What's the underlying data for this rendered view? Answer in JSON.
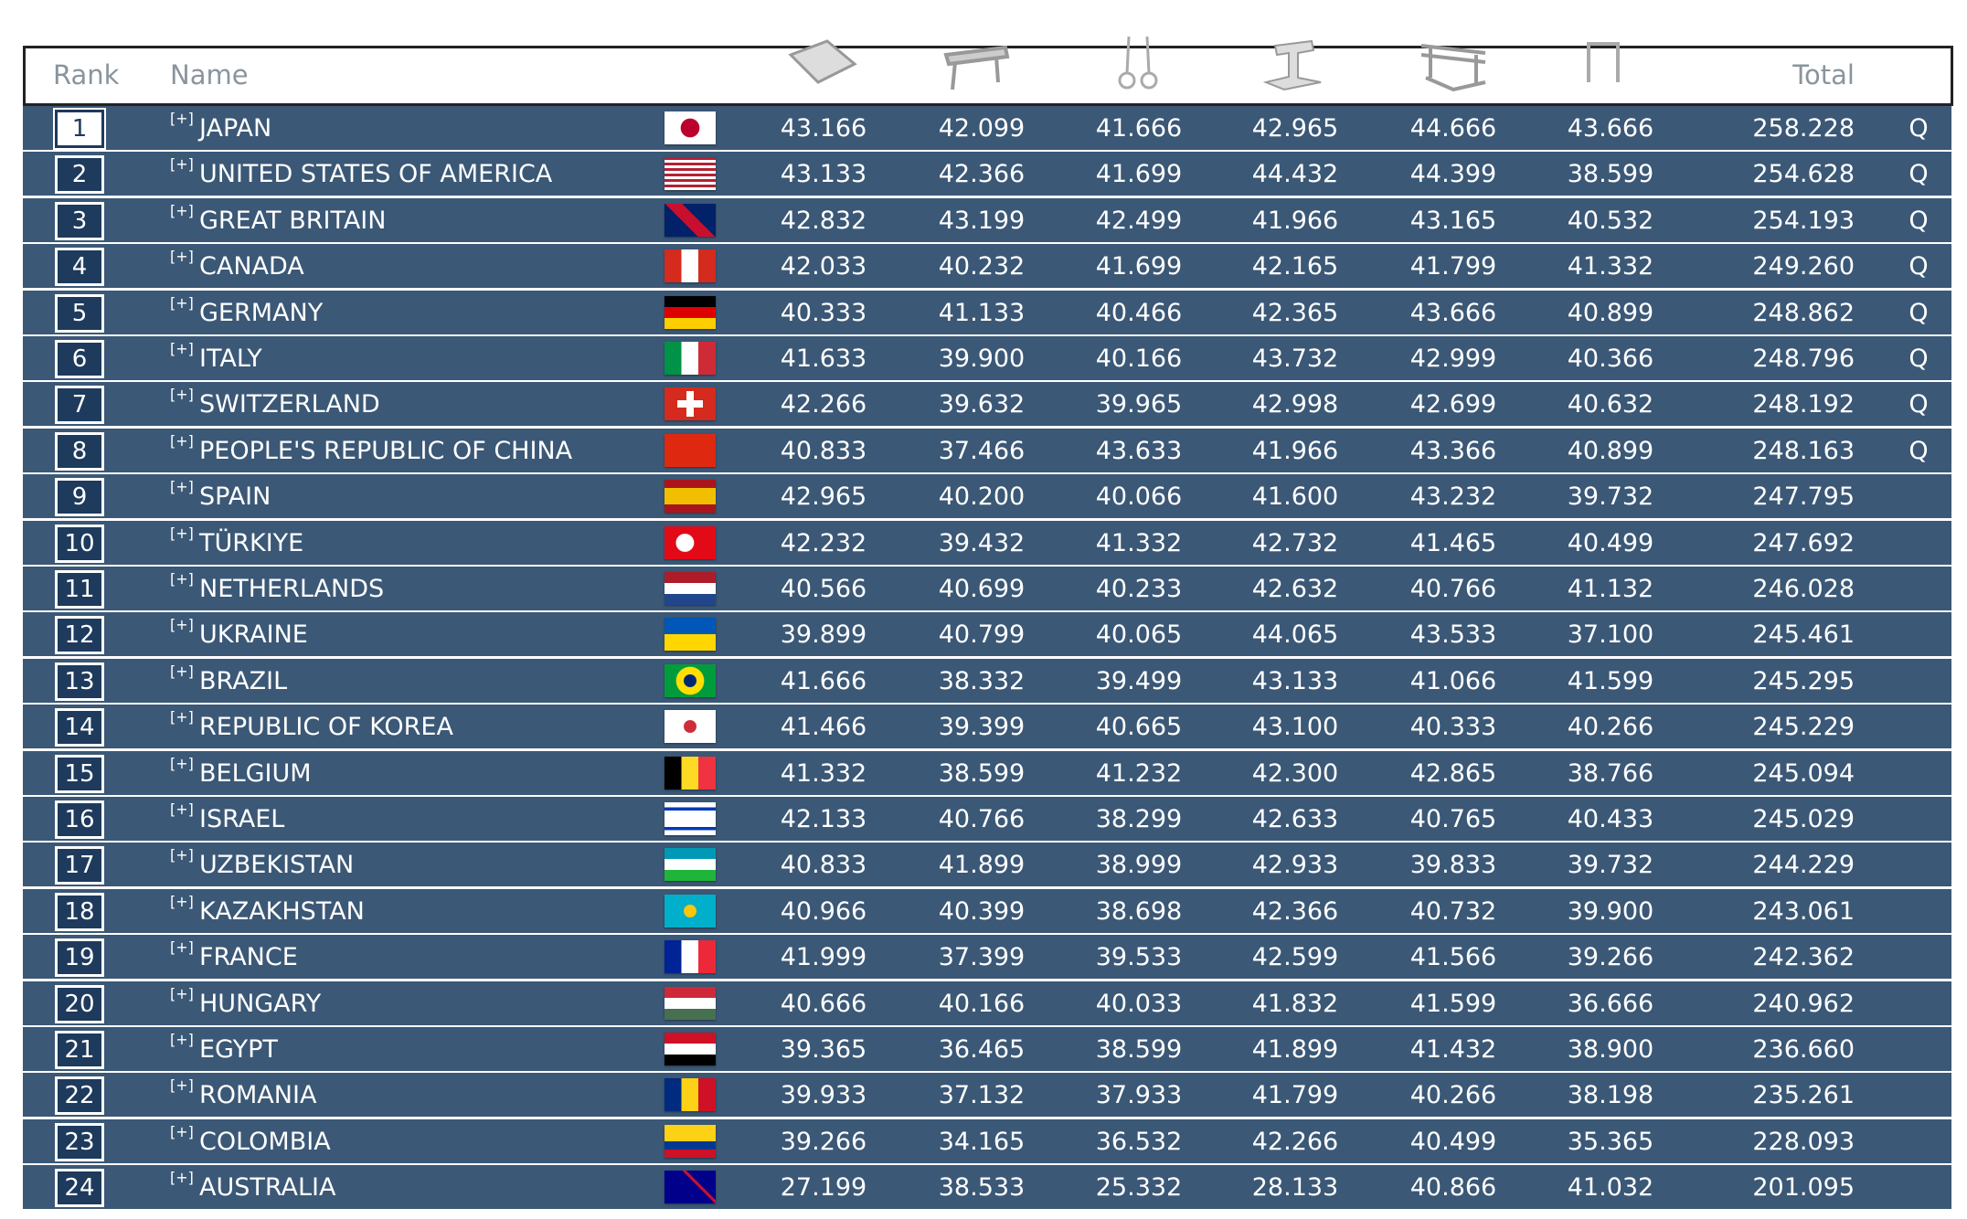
{
  "header": {
    "rank": "Rank",
    "name": "Name",
    "total": "Total"
  },
  "rows": [
    {
      "rank": "1",
      "expander": "[+]",
      "name": "JAPAN",
      "scores": [
        "43.166",
        "42.099",
        "41.666",
        "42.965",
        "44.666",
        "43.666"
      ],
      "total": "258.228",
      "qualifier": "Q"
    },
    {
      "rank": "2",
      "expander": "[+]",
      "name": "UNITED STATES OF AMERICA",
      "scores": [
        "43.133",
        "42.366",
        "41.699",
        "44.432",
        "44.399",
        "38.599"
      ],
      "total": "254.628",
      "qualifier": "Q"
    },
    {
      "rank": "3",
      "expander": "[+]",
      "name": "GREAT BRITAIN",
      "scores": [
        "42.832",
        "43.199",
        "42.499",
        "41.966",
        "43.165",
        "40.532"
      ],
      "total": "254.193",
      "qualifier": "Q"
    },
    {
      "rank": "4",
      "expander": "[+]",
      "name": "CANADA",
      "scores": [
        "42.033",
        "40.232",
        "41.699",
        "42.165",
        "41.799",
        "41.332"
      ],
      "total": "249.260",
      "qualifier": "Q"
    },
    {
      "rank": "5",
      "expander": "[+]",
      "name": "GERMANY",
      "scores": [
        "40.333",
        "41.133",
        "40.466",
        "42.365",
        "43.666",
        "40.899"
      ],
      "total": "248.862",
      "qualifier": "Q"
    },
    {
      "rank": "6",
      "expander": "[+]",
      "name": "ITALY",
      "scores": [
        "41.633",
        "39.900",
        "40.166",
        "43.732",
        "42.999",
        "40.366"
      ],
      "total": "248.796",
      "qualifier": "Q"
    },
    {
      "rank": "7",
      "expander": "[+]",
      "name": "SWITZERLAND",
      "scores": [
        "42.266",
        "39.632",
        "39.965",
        "42.998",
        "42.699",
        "40.632"
      ],
      "total": "248.192",
      "qualifier": "Q"
    },
    {
      "rank": "8",
      "expander": "[+]",
      "name": "PEOPLE'S REPUBLIC OF CHINA",
      "scores": [
        "40.833",
        "37.466",
        "43.633",
        "41.966",
        "43.366",
        "40.899"
      ],
      "total": "248.163",
      "qualifier": "Q"
    },
    {
      "rank": "9",
      "expander": "[+]",
      "name": "SPAIN",
      "scores": [
        "42.965",
        "40.200",
        "40.066",
        "41.600",
        "43.232",
        "39.732"
      ],
      "total": "247.795"
    },
    {
      "rank": "10",
      "expander": "[+]",
      "name": "TÜRKIYE",
      "scores": [
        "42.232",
        "39.432",
        "41.332",
        "42.732",
        "41.465",
        "40.499"
      ],
      "total": "247.692"
    },
    {
      "rank": "11",
      "expander": "[+]",
      "name": "NETHERLANDS",
      "scores": [
        "40.566",
        "40.699",
        "40.233",
        "42.632",
        "40.766",
        "41.132"
      ],
      "total": "246.028"
    },
    {
      "rank": "12",
      "expander": "[+]",
      "name": "UKRAINE",
      "scores": [
        "39.899",
        "40.799",
        "40.065",
        "44.065",
        "43.533",
        "37.100"
      ],
      "total": "245.461"
    },
    {
      "rank": "13",
      "expander": "[+]",
      "name": "BRAZIL",
      "scores": [
        "41.666",
        "38.332",
        "39.499",
        "43.133",
        "41.066",
        "41.599"
      ],
      "total": "245.295"
    },
    {
      "rank": "14",
      "expander": "[+]",
      "name": "REPUBLIC OF KOREA",
      "scores": [
        "41.466",
        "39.399",
        "40.665",
        "43.100",
        "40.333",
        "40.266"
      ],
      "total": "245.229"
    },
    {
      "rank": "15",
      "expander": "[+]",
      "name": "BELGIUM",
      "scores": [
        "41.332",
        "38.599",
        "41.232",
        "42.300",
        "42.865",
        "38.766"
      ],
      "total": "245.094"
    },
    {
      "rank": "16",
      "expander": "[+]",
      "name": "ISRAEL",
      "scores": [
        "42.133",
        "40.766",
        "38.299",
        "42.633",
        "40.765",
        "40.433"
      ],
      "total": "245.029"
    },
    {
      "rank": "17",
      "expander": "[+]",
      "name": "UZBEKISTAN",
      "scores": [
        "40.833",
        "41.899",
        "38.999",
        "42.933",
        "39.833",
        "39.732"
      ],
      "total": "244.229"
    },
    {
      "rank": "18",
      "expander": "[+]",
      "name": "KAZAKHSTAN",
      "scores": [
        "40.966",
        "40.399",
        "38.698",
        "42.366",
        "40.732",
        "39.900"
      ],
      "total": "243.061"
    },
    {
      "rank": "19",
      "expander": "[+]",
      "name": "FRANCE",
      "scores": [
        "41.999",
        "37.399",
        "39.533",
        "42.599",
        "41.566",
        "39.266"
      ],
      "total": "242.362"
    },
    {
      "rank": "20",
      "expander": "[+]",
      "name": "HUNGARY",
      "scores": [
        "40.666",
        "40.166",
        "40.033",
        "41.832",
        "41.599",
        "36.666"
      ],
      "total": "240.962"
    },
    {
      "rank": "21",
      "expander": "[+]",
      "name": "EGYPT",
      "scores": [
        "39.365",
        "36.465",
        "38.599",
        "41.899",
        "41.432",
        "38.900"
      ],
      "total": "236.660"
    },
    {
      "rank": "22",
      "expander": "[+]",
      "name": "ROMANIA",
      "scores": [
        "39.933",
        "37.132",
        "37.933",
        "41.799",
        "40.266",
        "38.198"
      ],
      "total": "235.261"
    },
    {
      "rank": "23",
      "expander": "[+]",
      "name": "COLOMBIA",
      "scores": [
        "39.266",
        "34.165",
        "36.532",
        "42.266",
        "40.499",
        "35.365"
      ],
      "total": "228.093"
    },
    {
      "rank": "24",
      "expander": "[+]",
      "name": "AUSTRALIA",
      "scores": [
        "27.199",
        "38.533",
        "25.332",
        "28.133",
        "40.866",
        "41.032"
      ],
      "total": "201.095"
    }
  ]
}
